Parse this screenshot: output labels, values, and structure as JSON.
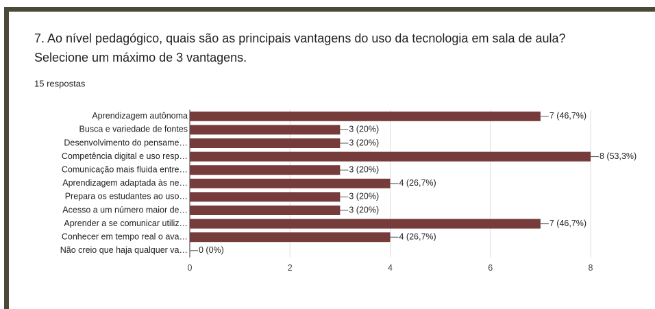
{
  "question": "7. Ao nível pedagógico, quais são as principais vantagens do uso da tecnologia em sala de aula? Selecione um máximo de 3 vantagens.",
  "responses": "15 respostas",
  "chart_data": {
    "type": "hbar",
    "categories": [
      "Aprendizagem autônoma",
      "Busca e variedade de fontes",
      "Desenvolvimento do pensame…",
      "Competência digital e uso resp…",
      "Comunicação mais fluida entre…",
      "Aprendizagem adaptada às ne…",
      "Prepara os estudantes ao uso…",
      "Acesso a um número maior de…",
      "Aprender a se comunicar utiliz…",
      "Conhecer em tempo real o ava…",
      "Não creio que haja qualquer va…"
    ],
    "values": [
      7,
      3,
      3,
      8,
      3,
      4,
      3,
      3,
      7,
      4,
      0
    ],
    "value_labels": [
      "7 (46,7%)",
      "3 (20%)",
      "3 (20%)",
      "8 (53,3%)",
      "3 (20%)",
      "4 (26,7%)",
      "3 (20%)",
      "3 (20%)",
      "7 (46,7%)",
      "4 (26,7%)",
      "0 (0%)"
    ],
    "color": "#763b3b",
    "xlim": [
      0,
      8
    ],
    "xticks": [
      0,
      2,
      4,
      6,
      8
    ],
    "grid": true
  }
}
